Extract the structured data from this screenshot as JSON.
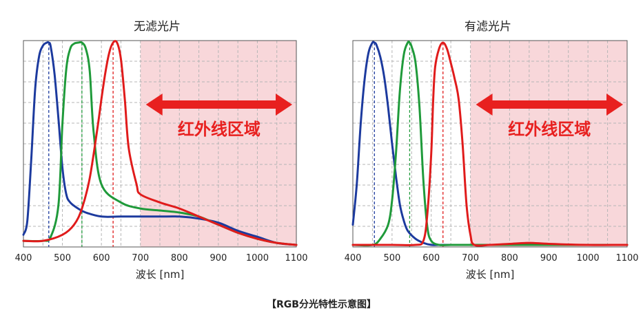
{
  "caption": "【RGB分光特性示意图】",
  "chart_data": [
    {
      "type": "line",
      "title": "无滤光片",
      "xlabel": "波长 [nm]",
      "ylabel": "",
      "xlim": [
        400,
        1100
      ],
      "ylim": [
        0,
        1
      ],
      "xticks": [
        400,
        500,
        600,
        700,
        800,
        900,
        1000,
        1100
      ],
      "grid": true,
      "ir_region": {
        "from": 700,
        "to": 1100,
        "label": "红外线区域",
        "color": "#f8d7da",
        "arrow_color": "#e8201f"
      },
      "series": [
        {
          "color": "#1c3a9e",
          "peak": 465,
          "x": [
            400,
            410,
            420,
            430,
            440,
            450,
            460,
            465,
            470,
            480,
            490,
            500,
            510,
            520,
            540,
            560,
            600,
            650,
            700,
            750,
            800,
            850,
            900,
            950,
            1000,
            1050,
            1100
          ],
          "y": [
            0.05,
            0.12,
            0.42,
            0.77,
            0.93,
            0.985,
            1.0,
            1.0,
            0.98,
            0.84,
            0.62,
            0.38,
            0.25,
            0.21,
            0.18,
            0.16,
            0.14,
            0.14,
            0.14,
            0.14,
            0.14,
            0.13,
            0.11,
            0.07,
            0.04,
            0.01,
            0.0
          ]
        },
        {
          "color": "#1f9a3a",
          "peak": 550,
          "x": [
            400,
            450,
            470,
            490,
            500,
            510,
            520,
            530,
            540,
            550,
            560,
            570,
            580,
            600,
            650,
            700,
            750,
            800,
            850,
            900,
            950,
            1000,
            1050,
            1100
          ],
          "y": [
            0.02,
            0.02,
            0.04,
            0.2,
            0.6,
            0.87,
            0.97,
            0.995,
            1.0,
            1.0,
            0.97,
            0.86,
            0.56,
            0.3,
            0.21,
            0.18,
            0.17,
            0.16,
            0.14,
            0.1,
            0.06,
            0.03,
            0.01,
            0.0
          ]
        },
        {
          "color": "#e01b1b",
          "peak": 630,
          "x": [
            400,
            450,
            500,
            530,
            550,
            570,
            590,
            600,
            610,
            620,
            630,
            640,
            650,
            660,
            670,
            690,
            700,
            750,
            800,
            850,
            900,
            950,
            1000,
            1050,
            1100
          ],
          "y": [
            0.02,
            0.02,
            0.05,
            0.1,
            0.18,
            0.33,
            0.58,
            0.72,
            0.85,
            0.95,
            1.0,
            1.0,
            0.92,
            0.72,
            0.48,
            0.3,
            0.25,
            0.21,
            0.18,
            0.14,
            0.1,
            0.06,
            0.03,
            0.01,
            0.0
          ]
        }
      ]
    },
    {
      "type": "line",
      "title": "有滤光片",
      "xlabel": "波长 [nm]",
      "ylabel": "",
      "xlim": [
        400,
        1100
      ],
      "ylim": [
        0,
        1
      ],
      "xticks": [
        400,
        500,
        600,
        700,
        800,
        900,
        1000,
        1100
      ],
      "grid": true,
      "ir_region": {
        "from": 700,
        "to": 1100,
        "label": "红外线区域",
        "color": "#f8d7da",
        "arrow_color": "#e8201f"
      },
      "series": [
        {
          "color": "#1c3a9e",
          "peak": 455,
          "x": [
            400,
            410,
            420,
            430,
            440,
            450,
            455,
            460,
            470,
            480,
            490,
            500,
            510,
            520,
            530,
            540,
            560,
            580,
            600,
            620,
            650,
            700,
            800,
            900,
            1000,
            1100
          ],
          "y": [
            0.1,
            0.3,
            0.6,
            0.82,
            0.95,
            1.0,
            1.0,
            0.99,
            0.93,
            0.83,
            0.68,
            0.5,
            0.34,
            0.2,
            0.12,
            0.07,
            0.03,
            0.01,
            0.0,
            0.0,
            0.0,
            0.0,
            0.0,
            0.0,
            0.0,
            0.0
          ]
        },
        {
          "color": "#1f9a3a",
          "peak": 545,
          "x": [
            400,
            450,
            470,
            490,
            500,
            510,
            520,
            530,
            540,
            545,
            550,
            560,
            570,
            580,
            590,
            600,
            620,
            650,
            700,
            800,
            900,
            1000,
            1100
          ],
          "y": [
            0.0,
            0.0,
            0.03,
            0.1,
            0.22,
            0.45,
            0.76,
            0.94,
            1.0,
            1.0,
            0.98,
            0.9,
            0.68,
            0.32,
            0.09,
            0.02,
            0.0,
            0.0,
            0.0,
            0.0,
            0.0,
            0.0,
            0.0
          ]
        },
        {
          "color": "#e01b1b",
          "peak": 630,
          "x": [
            400,
            500,
            560,
            580,
            590,
            600,
            605,
            610,
            620,
            630,
            640,
            650,
            660,
            670,
            680,
            690,
            700,
            710,
            750,
            800,
            850,
            900,
            1000,
            1100
          ],
          "y": [
            0.0,
            0.0,
            0.0,
            0.02,
            0.15,
            0.45,
            0.72,
            0.88,
            0.97,
            1.0,
            0.97,
            0.9,
            0.82,
            0.72,
            0.5,
            0.2,
            0.05,
            0.0,
            0.0,
            0.005,
            0.01,
            0.005,
            0.0,
            0.0
          ]
        }
      ]
    }
  ]
}
